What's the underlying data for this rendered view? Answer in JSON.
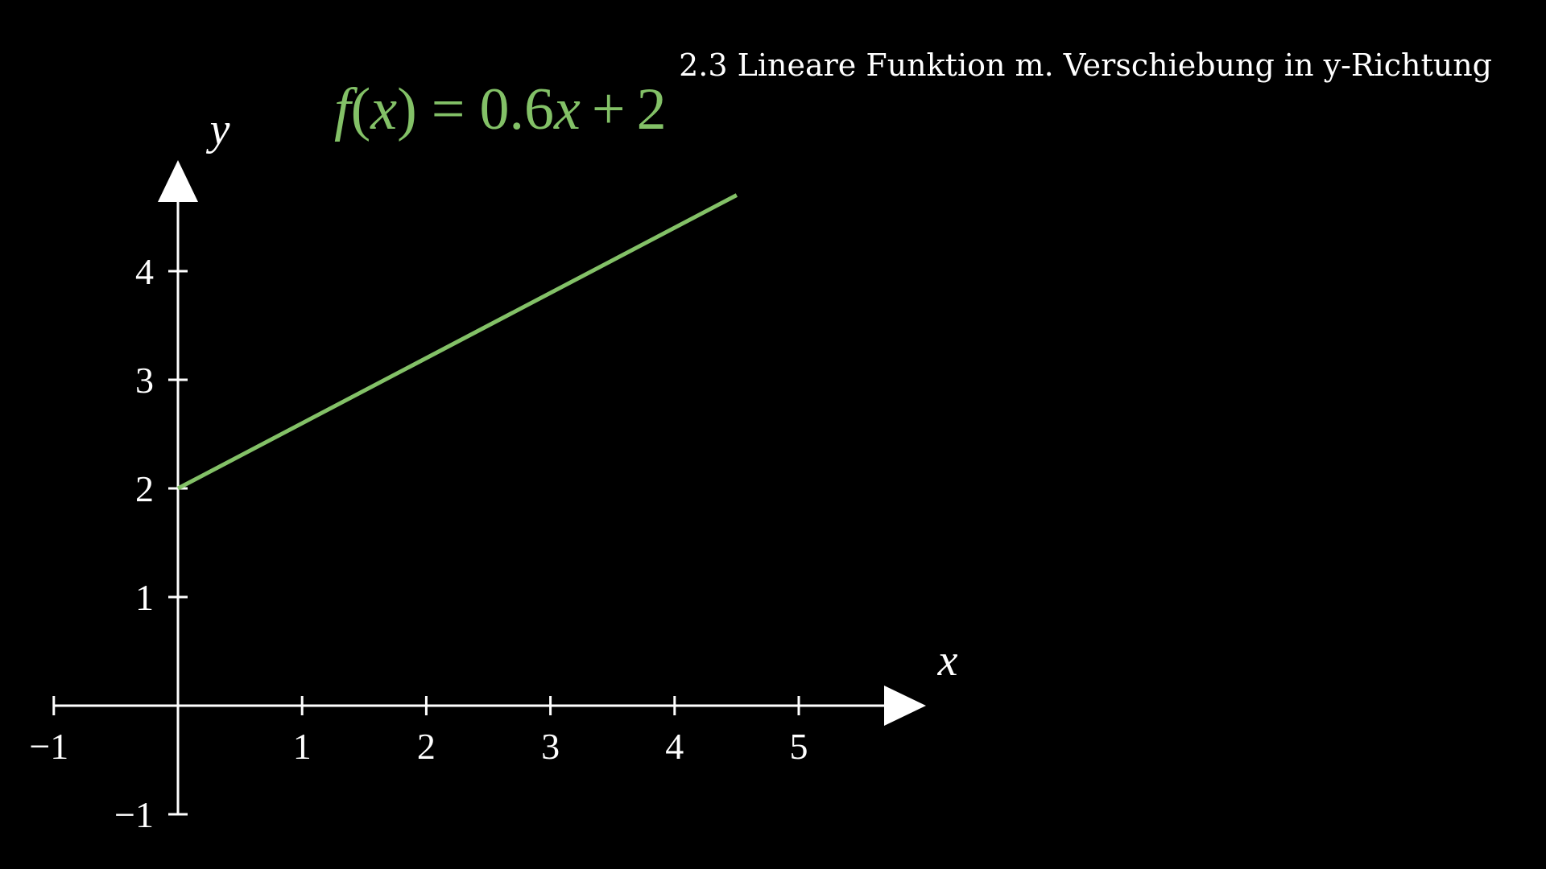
{
  "title": "2.3 Lineare Funktion m. Verschiebung in y-Richtung",
  "chart_data": {
    "type": "line",
    "xlabel": "x",
    "ylabel": "y",
    "xlim": [
      -1,
      5.9
    ],
    "ylim": [
      -1,
      4.8
    ],
    "x_ticks": [
      -1,
      1,
      2,
      3,
      4,
      5
    ],
    "y_ticks": [
      -1,
      1,
      2,
      3,
      4
    ],
    "x_tick_labels": [
      "−1",
      "1",
      "2",
      "3",
      "4",
      "5"
    ],
    "y_tick_labels": [
      "−1",
      "1",
      "2",
      "3",
      "4"
    ],
    "grid": false,
    "series": [
      {
        "name": "f(x) = 0.6x + 2",
        "color": "#83c167",
        "x": [
          0,
          4.5
        ],
        "y": [
          2,
          4.7
        ]
      }
    ]
  },
  "formula": {
    "f": "f",
    "open_paren": "(",
    "x": "x",
    "close_paren": ")",
    "equals": "=",
    "coef": "0.6",
    "x2": "x",
    "plus": "+",
    "constant": "2"
  },
  "colors": {
    "background": "#000000",
    "axis": "#ffffff",
    "function": "#83c167",
    "text": "#ffffff"
  }
}
